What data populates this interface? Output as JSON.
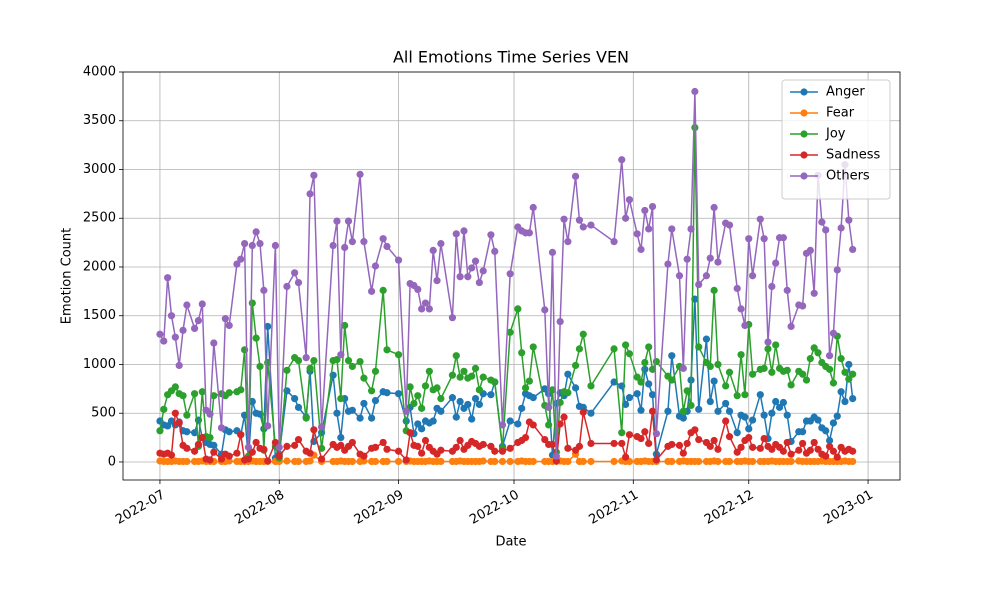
{
  "chart_data": {
    "type": "line",
    "title": "All Emotions Time Series VEN",
    "x_label": "Date",
    "y_label": "Emotion Count",
    "x": [
      0,
      1,
      2,
      3,
      4,
      5,
      6,
      7,
      9,
      10,
      11,
      12,
      13,
      14,
      16,
      17,
      18,
      20,
      21,
      22,
      23,
      24,
      25,
      26,
      27,
      28,
      30,
      31,
      33,
      35,
      36,
      38,
      39,
      40,
      42,
      45,
      46,
      47,
      48,
      49,
      50,
      52,
      53,
      55,
      56,
      58,
      59,
      62,
      64,
      65,
      66,
      67,
      68,
      69,
      70,
      71,
      72,
      73,
      76,
      77,
      78,
      79,
      80,
      81,
      82,
      83,
      84,
      86,
      87,
      89,
      91,
      93,
      94,
      95,
      96,
      97,
      100,
      101,
      102,
      103,
      104,
      105,
      106,
      108,
      109,
      110,
      112,
      118,
      120,
      121,
      122,
      124,
      125,
      126,
      127,
      128,
      129,
      132,
      133,
      135,
      136,
      137,
      138,
      139,
      140,
      142,
      143,
      144,
      145,
      147,
      148,
      150,
      151,
      152,
      153,
      154,
      156,
      157,
      158,
      159,
      160,
      161,
      162,
      163,
      164,
      166,
      167,
      168,
      169,
      170,
      171,
      172,
      173,
      174,
      175,
      176,
      177,
      178,
      179,
      180
    ],
    "xlim": [
      -9.6,
      192.3
    ],
    "xticks": [
      {
        "value": 0,
        "label": "2022-07"
      },
      {
        "value": 31,
        "label": "2022-08"
      },
      {
        "value": 62,
        "label": "2022-09"
      },
      {
        "value": 92,
        "label": "2022-10"
      },
      {
        "value": 123,
        "label": "2022-11"
      },
      {
        "value": 153,
        "label": "2022-12"
      },
      {
        "value": 184,
        "label": "2023-01"
      }
    ],
    "ylim": [
      -185,
      4000
    ],
    "yticks": [
      0,
      500,
      1000,
      1500,
      2000,
      2500,
      3000,
      3500,
      4000
    ],
    "grid": true,
    "legend": "upper right",
    "series": [
      {
        "name": "Anger",
        "color": "#1f77b4",
        "values": [
          420,
          380,
          370,
          420,
          380,
          410,
          320,
          310,
          300,
          430,
          250,
          200,
          180,
          170,
          80,
          330,
          310,
          320,
          280,
          480,
          40,
          620,
          500,
          490,
          340,
          1390,
          40,
          80,
          730,
          650,
          560,
          460,
          930,
          210,
          300,
          890,
          500,
          250,
          650,
          520,
          530,
          450,
          600,
          450,
          630,
          720,
          710,
          700,
          420,
          560,
          290,
          390,
          340,
          420,
          400,
          420,
          550,
          520,
          660,
          460,
          620,
          550,
          590,
          440,
          650,
          590,
          700,
          690,
          820,
          160,
          420,
          390,
          550,
          700,
          680,
          660,
          750,
          700,
          70,
          600,
          710,
          680,
          900,
          760,
          570,
          560,
          500,
          820,
          780,
          590,
          660,
          700,
          530,
          950,
          800,
          690,
          80,
          520,
          1090,
          470,
          450,
          520,
          840,
          1670,
          540,
          1260,
          620,
          830,
          520,
          600,
          520,
          300,
          480,
          460,
          340,
          430,
          690,
          480,
          240,
          500,
          620,
          560,
          610,
          480,
          210,
          310,
          310,
          420,
          420,
          460,
          430,
          350,
          320,
          220,
          400,
          470,
          720,
          620,
          1000,
          650
        ]
      },
      {
        "name": "Fear",
        "color": "#ff7f0e",
        "values": [
          10,
          5,
          5,
          5,
          10,
          5,
          5,
          5,
          5,
          5,
          10,
          5,
          5,
          5,
          5,
          5,
          10,
          5,
          5,
          5,
          5,
          10,
          5,
          5,
          5,
          5,
          5,
          5,
          10,
          5,
          5,
          5,
          10,
          70,
          5,
          5,
          5,
          10,
          5,
          5,
          5,
          5,
          10,
          5,
          5,
          5,
          5,
          5,
          5,
          10,
          5,
          5,
          5,
          5,
          10,
          5,
          5,
          5,
          5,
          5,
          10,
          5,
          5,
          5,
          5,
          5,
          10,
          5,
          5,
          5,
          5,
          5,
          10,
          5,
          5,
          5,
          5,
          5,
          5,
          5,
          10,
          5,
          5,
          80,
          5,
          5,
          5,
          5,
          10,
          5,
          5,
          5,
          5,
          10,
          5,
          5,
          5,
          5,
          5,
          5,
          10,
          5,
          5,
          5,
          5,
          5,
          5,
          10,
          5,
          5,
          5,
          5,
          5,
          10,
          5,
          5,
          5,
          5,
          5,
          10,
          5,
          5,
          5,
          5,
          5,
          10,
          5,
          5,
          5,
          5,
          5,
          10,
          5,
          5,
          5,
          5,
          5,
          10,
          5,
          5
        ]
      },
      {
        "name": "Joy",
        "color": "#2ca02c",
        "values": [
          320,
          540,
          690,
          730,
          770,
          700,
          680,
          480,
          700,
          160,
          720,
          260,
          250,
          680,
          700,
          680,
          710,
          720,
          740,
          1150,
          60,
          1630,
          1270,
          980,
          120,
          1020,
          160,
          40,
          940,
          1070,
          1040,
          450,
          960,
          1040,
          140,
          1040,
          1050,
          650,
          1400,
          1040,
          980,
          1030,
          860,
          730,
          930,
          1760,
          1150,
          1100,
          320,
          770,
          600,
          680,
          550,
          780,
          930,
          740,
          760,
          650,
          890,
          1090,
          870,
          930,
          860,
          880,
          960,
          740,
          870,
          840,
          820,
          140,
          1330,
          1570,
          1120,
          760,
          830,
          1180,
          580,
          380,
          740,
          100,
          610,
          720,
          710,
          990,
          1160,
          1310,
          780,
          1160,
          300,
          1200,
          1110,
          870,
          820,
          1020,
          1180,
          950,
          1030,
          880,
          840,
          980,
          520,
          730,
          580,
          3430,
          1180,
          1020,
          980,
          1760,
          1000,
          780,
          920,
          680,
          1100,
          690,
          1410,
          900,
          950,
          960,
          1160,
          920,
          1200,
          960,
          930,
          940,
          790,
          930,
          900,
          840,
          1060,
          1170,
          1120,
          1020,
          980,
          950,
          810,
          1290,
          1060,
          920,
          850,
          900
        ]
      },
      {
        "name": "Sadness",
        "color": "#d62728",
        "values": [
          90,
          80,
          90,
          70,
          500,
          400,
          170,
          140,
          110,
          180,
          250,
          30,
          20,
          100,
          30,
          80,
          60,
          90,
          280,
          20,
          30,
          100,
          200,
          140,
          130,
          10,
          200,
          60,
          160,
          170,
          230,
          110,
          90,
          330,
          30,
          180,
          150,
          170,
          120,
          160,
          200,
          80,
          60,
          140,
          150,
          200,
          130,
          110,
          20,
          300,
          170,
          160,
          90,
          220,
          150,
          110,
          80,
          120,
          110,
          150,
          220,
          130,
          170,
          210,
          190,
          160,
          180,
          160,
          110,
          110,
          140,
          200,
          220,
          250,
          410,
          380,
          230,
          180,
          180,
          10,
          390,
          460,
          140,
          120,
          160,
          510,
          190,
          190,
          190,
          50,
          280,
          260,
          240,
          310,
          190,
          520,
          20,
          160,
          180,
          170,
          90,
          190,
          300,
          330,
          230,
          200,
          160,
          220,
          130,
          420,
          260,
          100,
          150,
          220,
          250,
          150,
          140,
          240,
          160,
          130,
          180,
          150,
          110,
          200,
          80,
          120,
          190,
          90,
          120,
          200,
          130,
          80,
          60,
          160,
          110,
          50,
          150,
          110,
          130,
          110
        ]
      },
      {
        "name": "Others",
        "color": "#9467bd",
        "values": [
          1310,
          1240,
          1890,
          1500,
          1280,
          990,
          1350,
          1610,
          1370,
          1450,
          1620,
          530,
          490,
          1220,
          350,
          1470,
          1400,
          2030,
          2080,
          2240,
          150,
          2220,
          2360,
          2240,
          1760,
          370,
          2220,
          150,
          1800,
          1940,
          1840,
          1070,
          2750,
          2940,
          360,
          2220,
          2470,
          1100,
          2200,
          2470,
          2260,
          2950,
          2260,
          1750,
          2010,
          2290,
          2210,
          2070,
          520,
          1830,
          1810,
          1770,
          1570,
          1630,
          1570,
          2170,
          1860,
          2240,
          1480,
          2340,
          1900,
          2370,
          1900,
          1990,
          2060,
          1840,
          1960,
          2330,
          2160,
          380,
          1930,
          2410,
          2370,
          2350,
          2350,
          2610,
          1560,
          560,
          2150,
          60,
          1440,
          2490,
          2260,
          2930,
          2480,
          2410,
          2430,
          2260,
          3100,
          2500,
          2690,
          2340,
          2180,
          2580,
          2390,
          2620,
          290,
          2030,
          2390,
          1910,
          960,
          2080,
          2390,
          3800,
          1820,
          1910,
          2090,
          2610,
          2050,
          2450,
          2430,
          1780,
          1570,
          1400,
          2290,
          1910,
          2490,
          2290,
          1230,
          1800,
          2040,
          2300,
          2300,
          1760,
          1390,
          1610,
          1600,
          2140,
          2170,
          1730,
          2940,
          2460,
          2380,
          1090,
          1320,
          1970,
          2400,
          3050,
          2480,
          2180
        ]
      }
    ]
  }
}
